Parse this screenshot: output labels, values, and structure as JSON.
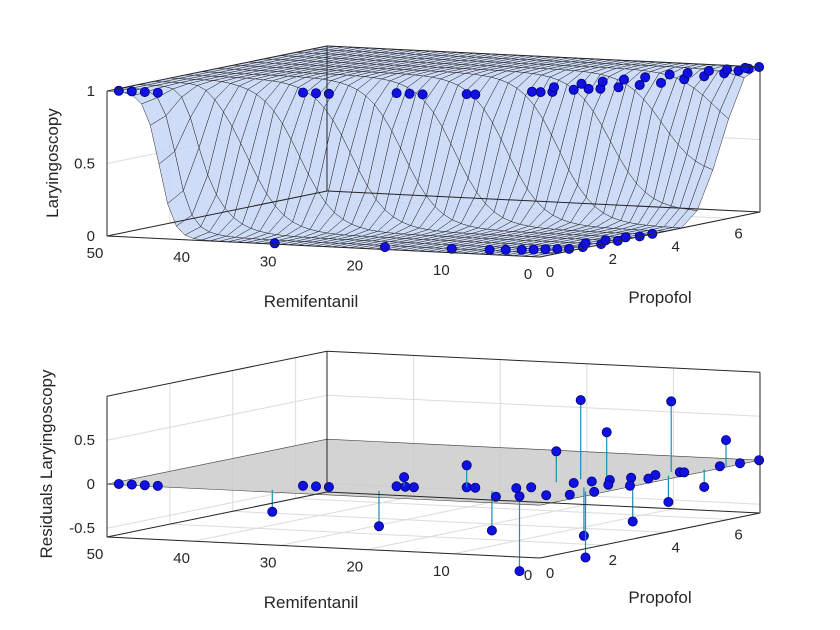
{
  "chart_data": [
    {
      "type": "surface",
      "zlabel": "Laryingoscopy",
      "xlabel": "Remifentanil",
      "ylabel": "Propofol",
      "xlim": [
        0,
        50
      ],
      "ylim": [
        0,
        7
      ],
      "zlim": [
        0,
        1
      ],
      "xticks": [
        "50",
        "40",
        "30",
        "20",
        "10",
        "0"
      ],
      "yticks": [
        "0",
        "2",
        "4",
        "6"
      ],
      "zticks": [
        "0",
        "0.5",
        "1"
      ],
      "grid": true,
      "points": [
        {
          "x": 49,
          "y": 0.1,
          "z": 1
        },
        {
          "x": 47.5,
          "y": 0.1,
          "z": 1
        },
        {
          "x": 46,
          "y": 0.1,
          "z": 1
        },
        {
          "x": 44.5,
          "y": 0.1,
          "z": 1
        },
        {
          "x": 31,
          "y": 1,
          "z": 1
        },
        {
          "x": 29.5,
          "y": 1,
          "z": 1
        },
        {
          "x": 28,
          "y": 1,
          "z": 1
        },
        {
          "x": 31,
          "y": 0.1,
          "z": 0
        },
        {
          "x": 22,
          "y": 1.5,
          "z": 1
        },
        {
          "x": 20.5,
          "y": 1.5,
          "z": 1
        },
        {
          "x": 19,
          "y": 1.5,
          "z": 1
        },
        {
          "x": 19,
          "y": 0.3,
          "z": 0
        },
        {
          "x": 15,
          "y": 1.8,
          "z": 1
        },
        {
          "x": 14,
          "y": 1.8,
          "z": 1
        },
        {
          "x": 12,
          "y": 0.5,
          "z": 0
        },
        {
          "x": 10,
          "y": 2.5,
          "z": 1
        },
        {
          "x": 9,
          "y": 2.5,
          "z": 1
        },
        {
          "x": 8,
          "y": 2.6,
          "z": 1
        },
        {
          "x": 7,
          "y": 3,
          "z": 1
        },
        {
          "x": 6,
          "y": 3.2,
          "z": 1
        },
        {
          "x": 5,
          "y": 3.3,
          "z": 1
        },
        {
          "x": 4,
          "y": 3.6,
          "z": 1
        },
        {
          "x": 3,
          "y": 4,
          "z": 1
        },
        {
          "x": 2,
          "y": 4.4,
          "z": 1
        },
        {
          "x": 1.5,
          "y": 5,
          "z": 1
        },
        {
          "x": 1,
          "y": 5.5,
          "z": 1
        },
        {
          "x": 0.5,
          "y": 6,
          "z": 1
        },
        {
          "x": 0.3,
          "y": 6.4,
          "z": 1
        },
        {
          "x": 0.2,
          "y": 6.7,
          "z": 1
        },
        {
          "x": 0.1,
          "y": 7,
          "z": 1
        },
        {
          "x": 1,
          "y": 6.8,
          "z": 1
        },
        {
          "x": 2,
          "y": 6.5,
          "z": 1
        },
        {
          "x": 3,
          "y": 6.2,
          "z": 1
        },
        {
          "x": 4,
          "y": 5.8,
          "z": 1
        },
        {
          "x": 5,
          "y": 5.5,
          "z": 1
        },
        {
          "x": 6,
          "y": 5,
          "z": 1
        },
        {
          "x": 7,
          "y": 4.6,
          "z": 1
        },
        {
          "x": 8,
          "y": 4.2,
          "z": 1
        },
        {
          "x": 9,
          "y": 3.8,
          "z": 1
        },
        {
          "x": 10,
          "y": 3.2,
          "z": 1
        },
        {
          "x": 8,
          "y": 0.6,
          "z": 0
        },
        {
          "x": 6.5,
          "y": 0.7,
          "z": 0
        },
        {
          "x": 5,
          "y": 0.8,
          "z": 0
        },
        {
          "x": 4,
          "y": 0.9,
          "z": 0
        },
        {
          "x": 3,
          "y": 1,
          "z": 0
        },
        {
          "x": 2,
          "y": 1.1,
          "z": 0
        },
        {
          "x": 1,
          "y": 1.2,
          "z": 0
        },
        {
          "x": 0.5,
          "y": 1.5,
          "z": 0
        },
        {
          "x": 0.2,
          "y": 2,
          "z": 0
        },
        {
          "x": 0.1,
          "y": 2.5,
          "z": 0
        },
        {
          "x": 0.1,
          "y": 3.2,
          "z": 0
        },
        {
          "x": 0.1,
          "y": 3.6,
          "z": 0
        },
        {
          "x": 2,
          "y": 2,
          "z": 0
        },
        {
          "x": 1.5,
          "y": 2.5,
          "z": 0
        },
        {
          "x": 1,
          "y": 3,
          "z": 0
        }
      ]
    },
    {
      "type": "stem3",
      "zlabel": "Residuals Laryingoscopy",
      "xlabel": "Remifentanil",
      "ylabel": "Propofol",
      "xlim": [
        0,
        50
      ],
      "ylim": [
        0,
        7
      ],
      "zlim": [
        -0.6,
        1
      ],
      "xticks": [
        "50",
        "40",
        "30",
        "20",
        "10",
        "0"
      ],
      "yticks": [
        "0",
        "2",
        "4",
        "6"
      ],
      "zticks": [
        "-0.5",
        "0",
        "0.5"
      ],
      "grid": true,
      "points": [
        {
          "x": 49,
          "y": 0.1,
          "z": 0
        },
        {
          "x": 47.5,
          "y": 0.1,
          "z": 0
        },
        {
          "x": 46,
          "y": 0.1,
          "z": 0
        },
        {
          "x": 44.5,
          "y": 0.1,
          "z": 0
        },
        {
          "x": 31,
          "y": 1,
          "z": 0
        },
        {
          "x": 29.5,
          "y": 1,
          "z": 0
        },
        {
          "x": 28,
          "y": 1,
          "z": 0
        },
        {
          "x": 32,
          "y": 0.3,
          "z": -0.25
        },
        {
          "x": 22,
          "y": 1.5,
          "z": 0
        },
        {
          "x": 21,
          "y": 1.5,
          "z": 0
        },
        {
          "x": 20,
          "y": 1.5,
          "z": 0
        },
        {
          "x": 21.5,
          "y": 1.6,
          "z": 0.1
        },
        {
          "x": 21.5,
          "y": 0.8,
          "z": -0.4
        },
        {
          "x": 15,
          "y": 1.8,
          "z": 0
        },
        {
          "x": 14,
          "y": 1.8,
          "z": 0
        },
        {
          "x": 15,
          "y": 1.8,
          "z": 0.25
        },
        {
          "x": 10,
          "y": 2,
          "z": 0
        },
        {
          "x": 9,
          "y": 2.2,
          "z": 0
        },
        {
          "x": 11,
          "y": 1.5,
          "z": -0.45
        },
        {
          "x": 9,
          "y": 3,
          "z": 0.35
        },
        {
          "x": 8,
          "y": 3.5,
          "z": 0.9
        },
        {
          "x": 6,
          "y": 1,
          "z": -0.85
        },
        {
          "x": 5,
          "y": 3.5,
          "z": 0.55
        },
        {
          "x": 4,
          "y": 2.5,
          "z": -0.55
        },
        {
          "x": 2,
          "y": 2,
          "z": -0.75
        },
        {
          "x": 3,
          "y": 5,
          "z": 0.8
        },
        {
          "x": 2,
          "y": 3.5,
          "z": -0.45
        },
        {
          "x": 1.5,
          "y": 4.5,
          "z": -0.3
        },
        {
          "x": 1,
          "y": 5.5,
          "z": -0.2
        },
        {
          "x": 0.3,
          "y": 6,
          "z": 0.3
        },
        {
          "x": 7,
          "y": 3,
          "z": 0
        },
        {
          "x": 6,
          "y": 3.3,
          "z": 0
        },
        {
          "x": 5,
          "y": 3.6,
          "z": 0
        },
        {
          "x": 4,
          "y": 4,
          "z": 0
        },
        {
          "x": 3,
          "y": 4.5,
          "z": 0
        },
        {
          "x": 2,
          "y": 5,
          "z": 0
        },
        {
          "x": 1,
          "y": 6,
          "z": 0
        },
        {
          "x": 0.5,
          "y": 6.5,
          "z": 0
        },
        {
          "x": 0.1,
          "y": 7,
          "z": 0
        },
        {
          "x": 8,
          "y": 0.8,
          "z": 0
        },
        {
          "x": 6,
          "y": 1,
          "z": 0
        },
        {
          "x": 4,
          "y": 1.3,
          "z": 0
        },
        {
          "x": 2,
          "y": 1.5,
          "z": 0
        },
        {
          "x": 1,
          "y": 2,
          "z": 0
        },
        {
          "x": 0.5,
          "y": 3,
          "z": 0
        },
        {
          "x": 3,
          "y": 3,
          "z": 0
        },
        {
          "x": 2,
          "y": 4,
          "z": 0
        },
        {
          "x": 1.5,
          "y": 5,
          "z": 0
        }
      ]
    }
  ]
}
